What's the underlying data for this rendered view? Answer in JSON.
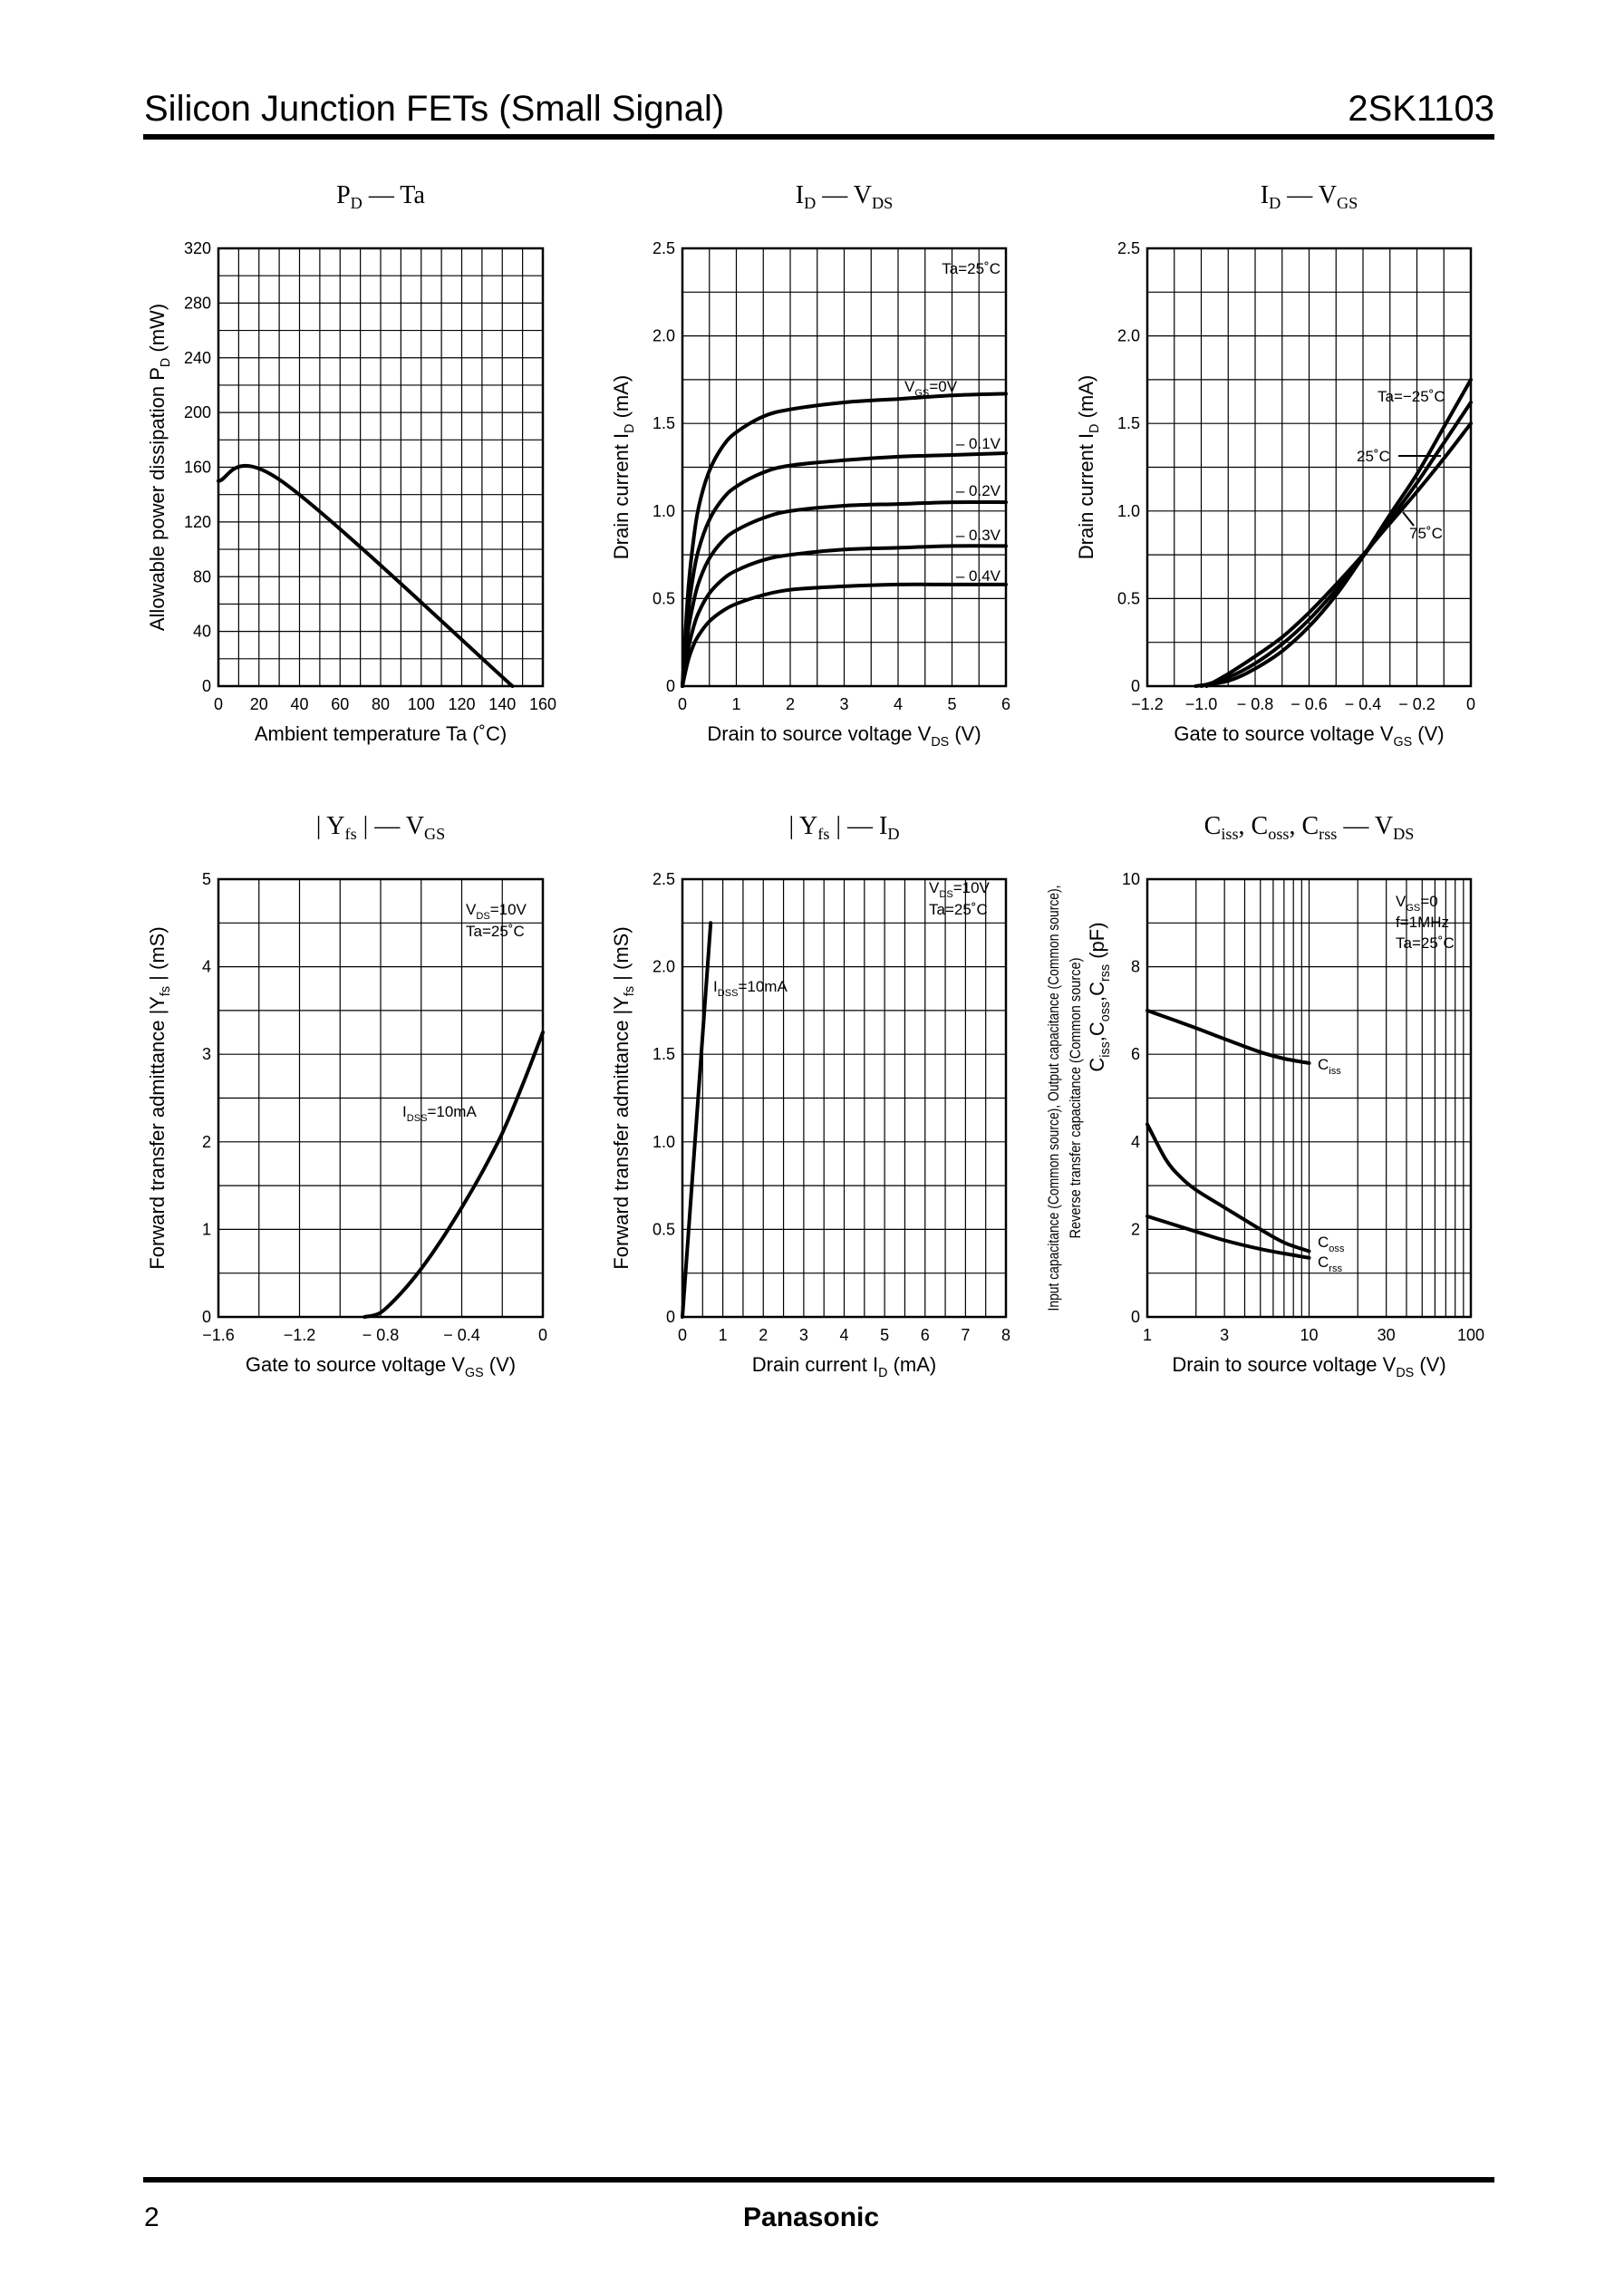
{
  "header": {
    "title": "Silicon Junction FETs (Small Signal)",
    "part_number": "2SK1103"
  },
  "footer": {
    "page_number": "2",
    "brand": "Panasonic"
  },
  "chart_data": [
    {
      "id": "pd-ta",
      "type": "line",
      "title": {
        "main": "P",
        "sub": "D",
        "rest": " — Ta"
      },
      "xlabel": "Ambient temperature   Ta   (˚C)",
      "ylabel": "Allowable power dissipation   P  (mW)",
      "ylabel_sub": "D",
      "xlim": [
        0,
        160
      ],
      "ylim": [
        0,
        320
      ],
      "xticks": [
        0,
        20,
        40,
        60,
        80,
        100,
        120,
        140,
        160
      ],
      "yticks": [
        0,
        40,
        80,
        120,
        160,
        200,
        240,
        280,
        320
      ],
      "xtick_labels": [
        "0",
        "20",
        "40",
        "60",
        "80",
        "100",
        "120",
        "140",
        "160"
      ],
      "ytick_labels": [
        "0",
        "40",
        "80",
        "120",
        "160",
        "200",
        "240",
        "280",
        "320"
      ],
      "series": [
        {
          "x": [
            0,
            31,
            145
          ],
          "y": [
            150,
            150,
            0
          ]
        }
      ],
      "annotations": []
    },
    {
      "id": "id-vds",
      "type": "line",
      "title": {
        "main": "I",
        "sub": "D",
        "rest": " — V",
        "sub2": "DS"
      },
      "xlabel": "Drain to source voltage   V    (V)",
      "xlabel_sub": "DS",
      "ylabel": "Drain current   I   (mA)",
      "ylabel_sub": "D",
      "xlim": [
        0,
        6
      ],
      "ylim": [
        0,
        2.5
      ],
      "xticks": [
        0,
        1,
        2,
        3,
        4,
        5,
        6
      ],
      "yticks": [
        0,
        0.5,
        1.0,
        1.5,
        2.0,
        2.5
      ],
      "xtick_labels": [
        "0",
        "1",
        "2",
        "3",
        "4",
        "5",
        "6"
      ],
      "ytick_labels": [
        "0",
        "0.5",
        "1.0",
        "1.5",
        "2.0",
        "2.5"
      ],
      "series": [
        {
          "name": "V  =0V",
          "x": [
            0,
            0.1,
            0.2,
            0.3,
            0.5,
            0.75,
            1,
            1.5,
            2,
            3,
            4,
            5,
            6
          ],
          "y": [
            0,
            0.52,
            0.82,
            1.02,
            1.23,
            1.37,
            1.45,
            1.54,
            1.58,
            1.62,
            1.64,
            1.66,
            1.67
          ]
        },
        {
          "name": "– 0.1V",
          "x": [
            0,
            0.1,
            0.2,
            0.3,
            0.5,
            0.75,
            1,
            1.5,
            2,
            3,
            4,
            5,
            6
          ],
          "y": [
            0,
            0.4,
            0.63,
            0.78,
            0.95,
            1.07,
            1.14,
            1.22,
            1.26,
            1.29,
            1.31,
            1.32,
            1.33
          ]
        },
        {
          "name": "– 0.2V",
          "x": [
            0,
            0.1,
            0.2,
            0.3,
            0.5,
            0.75,
            1,
            1.5,
            2,
            3,
            4,
            5,
            6
          ],
          "y": [
            0,
            0.3,
            0.47,
            0.59,
            0.73,
            0.83,
            0.89,
            0.96,
            1.0,
            1.03,
            1.04,
            1.05,
            1.05
          ]
        },
        {
          "name": "– 0.3V",
          "x": [
            0,
            0.1,
            0.2,
            0.3,
            0.5,
            0.75,
            1,
            1.5,
            2,
            3,
            4,
            5,
            6
          ],
          "y": [
            0,
            0.2,
            0.33,
            0.42,
            0.53,
            0.61,
            0.66,
            0.72,
            0.75,
            0.78,
            0.79,
            0.8,
            0.8
          ]
        },
        {
          "name": "– 0.4V",
          "x": [
            0,
            0.1,
            0.2,
            0.3,
            0.5,
            0.75,
            1,
            1.5,
            2,
            3,
            4,
            5,
            6
          ],
          "y": [
            0,
            0.14,
            0.23,
            0.29,
            0.37,
            0.43,
            0.47,
            0.52,
            0.55,
            0.57,
            0.58,
            0.58,
            0.58
          ]
        }
      ],
      "annotations": [
        "Ta=25˚C"
      ]
    },
    {
      "id": "id-vgs",
      "type": "line",
      "title": {
        "main": "I",
        "sub": "D",
        "rest": " — V",
        "sub2": "GS"
      },
      "xlabel": "Gate to source voltage   V    (V)",
      "xlabel_sub": "GS",
      "ylabel": "Drain current   I   (mA)",
      "ylabel_sub": "D",
      "xlim": [
        -1.2,
        0
      ],
      "ylim": [
        0,
        2.5
      ],
      "xticks": [
        -1.2,
        -1.0,
        -0.8,
        -0.6,
        -0.4,
        -0.2,
        0
      ],
      "yticks": [
        0,
        0.5,
        1.0,
        1.5,
        2.0,
        2.5
      ],
      "xtick_labels": [
        "−1.2",
        "−1.0",
        "− 0.8",
        "− 0.6",
        "− 0.4",
        "− 0.2",
        "0"
      ],
      "ytick_labels": [
        "0",
        "0.5",
        "1.0",
        "1.5",
        "2.0",
        "2.5"
      ],
      "series": [
        {
          "name": "Ta=−25˚C",
          "x": [
            -1.02,
            -0.9,
            -0.8,
            -0.7,
            -0.6,
            -0.5,
            -0.4,
            -0.3,
            -0.2,
            -0.1,
            0
          ],
          "y": [
            0,
            0.03,
            0.1,
            0.2,
            0.34,
            0.52,
            0.74,
            0.98,
            1.21,
            1.48,
            1.75
          ]
        },
        {
          "name": "25˚C",
          "x": [
            -1.0,
            -0.9,
            -0.8,
            -0.7,
            -0.6,
            -0.5,
            -0.4,
            -0.3,
            -0.2,
            -0.1,
            0
          ],
          "y": [
            0,
            0.05,
            0.13,
            0.24,
            0.38,
            0.55,
            0.74,
            0.95,
            1.16,
            1.39,
            1.62
          ]
        },
        {
          "name": "75˚C",
          "x": [
            -0.98,
            -0.9,
            -0.8,
            -0.7,
            -0.6,
            -0.5,
            -0.4,
            -0.3,
            -0.2,
            -0.1,
            0
          ],
          "y": [
            0,
            0.07,
            0.17,
            0.28,
            0.42,
            0.58,
            0.75,
            0.93,
            1.11,
            1.3,
            1.5
          ]
        }
      ],
      "annotations": []
    },
    {
      "id": "yfs-vgs",
      "type": "line",
      "title": {
        "main": "| Y",
        "sub": "fs",
        "rest": " | — V",
        "sub2": "GS"
      },
      "xlabel": "Gate to source voltage   V    (V)",
      "xlabel_sub": "GS",
      "ylabel": "Forward transfer admittance   |Y  |   (mS)",
      "ylabel_sub": "fs",
      "xlim": [
        -1.6,
        0
      ],
      "ylim": [
        0,
        5
      ],
      "xticks": [
        -1.6,
        -1.2,
        -0.8,
        -0.4,
        0
      ],
      "yticks": [
        0,
        1,
        2,
        3,
        4,
        5
      ],
      "xtick_labels": [
        "−1.6",
        "−1.2",
        "− 0.8",
        "− 0.4",
        "0"
      ],
      "ytick_labels": [
        "0",
        "1",
        "2",
        "3",
        "4",
        "5"
      ],
      "series": [
        {
          "name": "I   =10mA",
          "x": [
            -0.88,
            -0.8,
            -0.7,
            -0.6,
            -0.5,
            -0.4,
            -0.3,
            -0.2,
            -0.1,
            0
          ],
          "y": [
            0,
            0.05,
            0.27,
            0.55,
            0.88,
            1.25,
            1.65,
            2.1,
            2.65,
            3.25
          ]
        }
      ],
      "annotations": [
        "V  =10V",
        "Ta=25˚C"
      ]
    },
    {
      "id": "yfs-id",
      "type": "line",
      "title": {
        "main": "| Y",
        "sub": "fs",
        "rest": " | — I",
        "sub2": "D"
      },
      "xlabel": "Drain current   I    (mA)",
      "xlabel_sub": "D",
      "ylabel": "Forward transfer admittance   |Y  |   (mS)",
      "ylabel_sub": "fs",
      "xlim": [
        0,
        8
      ],
      "ylim": [
        0,
        2.5
      ],
      "xticks": [
        0,
        1,
        2,
        3,
        4,
        5,
        6,
        7,
        8
      ],
      "yticks": [
        0,
        0.5,
        1.0,
        1.5,
        2.0,
        2.5
      ],
      "xtick_labels": [
        "0",
        "1",
        "2",
        "3",
        "4",
        "5",
        "6",
        "7",
        "8"
      ],
      "ytick_labels": [
        "0",
        "0.5",
        "1.0",
        "1.5",
        "2.0",
        "2.5"
      ],
      "series": [
        {
          "name": "I   =10mA",
          "x": [
            0,
            0.7
          ],
          "y": [
            0,
            2.25
          ]
        }
      ],
      "annotations": [
        "V  =10V",
        "Ta=25˚C"
      ]
    },
    {
      "id": "c-vds",
      "type": "line",
      "title": {
        "main": "C",
        "sub": "iss",
        "rest": ", C",
        "sub2": "oss",
        "rest2": ", C",
        "sub3": "rss",
        "rest3": " — V",
        "sub4": "DS"
      },
      "xlabel": "Drain to source voltage   V    (V)",
      "xlabel_sub": "DS",
      "ylabel_lines": [
        "Input capacitance (Common source), Output capacitance (Common source),",
        "Reverse transfer capacitance (Common source)"
      ],
      "ylabel2": "C    ,C    ,C      (pF)",
      "ylabel2_subs": [
        "iss",
        "oss",
        "rss"
      ],
      "xscale": "log",
      "xlim": [
        1,
        100
      ],
      "ylim": [
        0,
        10
      ],
      "xticks": [
        1,
        3,
        10,
        30,
        100
      ],
      "yticks": [
        0,
        2,
        4,
        6,
        8,
        10
      ],
      "xtick_labels": [
        "1",
        "3",
        "10",
        "30",
        "100"
      ],
      "ytick_labels": [
        "0",
        "2",
        "4",
        "6",
        "8",
        "10"
      ],
      "series": [
        {
          "name": "C",
          "label_sub": "iss",
          "x": [
            1,
            2,
            3,
            5,
            7,
            10
          ],
          "y": [
            7.0,
            6.6,
            6.35,
            6.05,
            5.9,
            5.8
          ]
        },
        {
          "name": "C",
          "label_sub": "oss",
          "x": [
            1,
            1.3,
            1.6,
            2,
            3,
            5,
            7,
            10
          ],
          "y": [
            4.4,
            3.6,
            3.2,
            2.9,
            2.5,
            2.0,
            1.7,
            1.5
          ]
        },
        {
          "name": "C",
          "label_sub": "rss",
          "x": [
            1,
            2,
            3,
            5,
            7,
            10
          ],
          "y": [
            2.3,
            1.95,
            1.75,
            1.55,
            1.45,
            1.35
          ]
        }
      ],
      "annotations": [
        "V  =0",
        "f=1MHz",
        "Ta=25˚C"
      ]
    }
  ]
}
